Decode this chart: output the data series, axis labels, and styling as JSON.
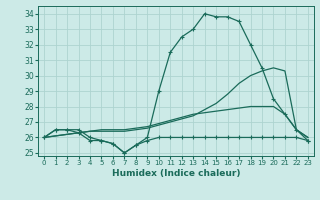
{
  "xlabel": "Humidex (Indice chaleur)",
  "bg_color": "#cceae7",
  "grid_color": "#add4d0",
  "line_color": "#1a6b5a",
  "x": [
    0,
    1,
    2,
    3,
    4,
    5,
    6,
    7,
    8,
    9,
    10,
    11,
    12,
    13,
    14,
    15,
    16,
    17,
    18,
    19,
    20,
    21,
    22,
    23
  ],
  "line_peak": [
    26.0,
    26.5,
    26.5,
    26.5,
    26.0,
    25.8,
    25.6,
    25.0,
    25.5,
    26.0,
    29.0,
    31.5,
    32.5,
    33.0,
    34.0,
    33.8,
    33.8,
    33.5,
    32.0,
    30.5,
    28.5,
    27.5,
    26.5,
    25.8
  ],
  "line_min": [
    26.0,
    26.5,
    26.5,
    26.3,
    25.8,
    25.8,
    25.6,
    25.0,
    25.5,
    25.8,
    26.0,
    26.0,
    26.0,
    26.0,
    26.0,
    26.0,
    26.0,
    26.0,
    26.0,
    26.0,
    26.0,
    26.0,
    26.0,
    25.8
  ],
  "line_avg1": [
    26.0,
    26.1,
    26.2,
    26.3,
    26.4,
    26.5,
    26.5,
    26.5,
    26.6,
    26.7,
    26.9,
    27.1,
    27.3,
    27.5,
    27.6,
    27.7,
    27.8,
    27.9,
    28.0,
    28.0,
    28.0,
    27.5,
    26.5,
    26.0
  ],
  "line_avg2": [
    26.0,
    26.1,
    26.2,
    26.3,
    26.4,
    26.4,
    26.4,
    26.4,
    26.5,
    26.6,
    26.8,
    27.0,
    27.2,
    27.4,
    27.8,
    28.2,
    28.8,
    29.5,
    30.0,
    30.3,
    30.5,
    30.3,
    26.5,
    26.0
  ],
  "ylim": [
    25,
    34.5
  ],
  "yticks": [
    25,
    26,
    27,
    28,
    29,
    30,
    31,
    32,
    33,
    34
  ],
  "xticks": [
    0,
    1,
    2,
    3,
    4,
    5,
    6,
    7,
    8,
    9,
    10,
    11,
    12,
    13,
    14,
    15,
    16,
    17,
    18,
    19,
    20,
    21,
    22,
    23
  ]
}
